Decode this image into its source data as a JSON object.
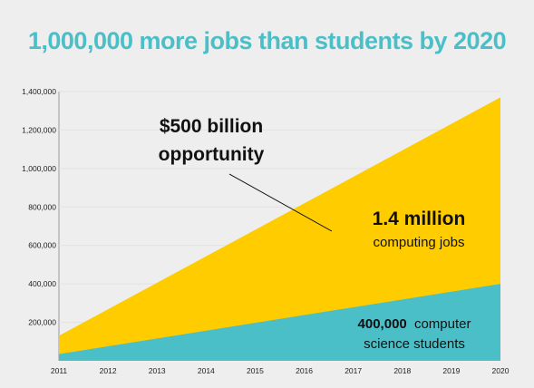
{
  "title": "1,000,000 more jobs than students by 2020",
  "annotations": {
    "opportunity_line1": "$500 billion",
    "opportunity_line2": "opportunity",
    "jobs_value": "1.4 million",
    "jobs_label": "computing jobs",
    "students_value": "400,000",
    "students_label_suffix": "computer",
    "students_label_line2": "science students"
  },
  "colors": {
    "title": "#4bbfc7",
    "jobs": "#ffcc00",
    "students": "#4bbfc7",
    "background": "#eeeeee"
  },
  "chart_data": {
    "type": "area",
    "title": "1,000,000 more jobs than students by 2020",
    "x": [
      2011,
      2020
    ],
    "x_ticks": [
      "2011",
      "2012",
      "2013",
      "2014",
      "2015",
      "2016",
      "2017",
      "2018",
      "2019",
      "2020"
    ],
    "y_ticks": [
      "200,000",
      "400,000",
      "600,000",
      "800,000",
      "1,000,000",
      "1,200,000",
      "1,400,000"
    ],
    "ylim": [
      0,
      1400000
    ],
    "xlim": [
      2011,
      2020
    ],
    "grid": true,
    "series": [
      {
        "name": "computing jobs",
        "values": [
          130000,
          1370000
        ]
      },
      {
        "name": "computer science students",
        "values": [
          35000,
          400000
        ]
      }
    ]
  }
}
